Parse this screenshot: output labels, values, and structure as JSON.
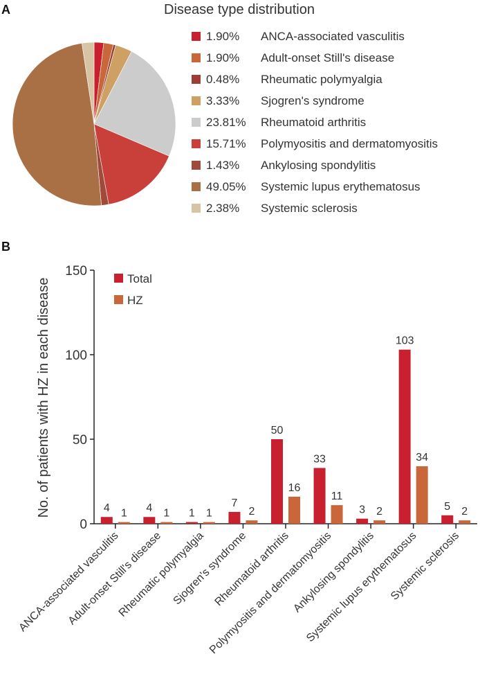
{
  "panel_a_label": "A",
  "panel_b_label": "B",
  "colors": {
    "total": "#c8202f",
    "hz": "#c9663a",
    "axis": "#222222"
  },
  "chart_data": [
    {
      "type": "pie",
      "title": "Disease type distribution",
      "slices": [
        {
          "pct_label": "1.90%",
          "value": 1.9,
          "name": "ANCA-associated vasculitis",
          "color": "#c8202f"
        },
        {
          "pct_label": "1.90%",
          "value": 1.9,
          "name": "Adult-onset Still's disease",
          "color": "#c9663a"
        },
        {
          "pct_label": "0.48%",
          "value": 0.48,
          "name": "Rheumatic polymyalgia",
          "color": "#9b3e34"
        },
        {
          "pct_label": "3.33%",
          "value": 3.33,
          "name": "Sjogren's syndrome",
          "color": "#cfa063"
        },
        {
          "pct_label": "23.81%",
          "value": 23.81,
          "name": "Rheumatoid arthritis",
          "color": "#cccccc"
        },
        {
          "pct_label": "15.71%",
          "value": 15.71,
          "name": "Polymyositis and dermatomyositis",
          "color": "#c9403a"
        },
        {
          "pct_label": "1.43%",
          "value": 1.43,
          "name": "Ankylosing spondylitis",
          "color": "#a04a3c"
        },
        {
          "pct_label": "49.05%",
          "value": 49.05,
          "name": "Systemic lupus erythematosus",
          "color": "#a87044"
        },
        {
          "pct_label": "2.38%",
          "value": 2.38,
          "name": "Systemic sclerosis",
          "color": "#d8c3a5"
        }
      ]
    },
    {
      "type": "bar",
      "title": "",
      "xlabel": "",
      "ylabel": "No. of patients with HZ in each disease",
      "ylim": [
        0,
        150
      ],
      "yticks": [
        0,
        50,
        100,
        150
      ],
      "legend": "top-left",
      "categories": [
        "ANCA-associated vasculitis",
        "Adult-onset Still's disease",
        "Rheumatic polymyalgia",
        "Sjogren's syndrome",
        "Rheumatoid arthritis",
        "Polymyositis and dermatomyositis",
        "Ankylosing spondylitis",
        "Systemic lupus erythematosus",
        "Systemic sclerosis"
      ],
      "series": [
        {
          "name": "Total",
          "color": "#c8202f",
          "values": [
            4,
            4,
            1,
            7,
            50,
            33,
            3,
            103,
            5
          ]
        },
        {
          "name": "HZ",
          "color": "#c9663a",
          "values": [
            1,
            1,
            1,
            2,
            16,
            11,
            2,
            34,
            2
          ]
        }
      ]
    }
  ]
}
